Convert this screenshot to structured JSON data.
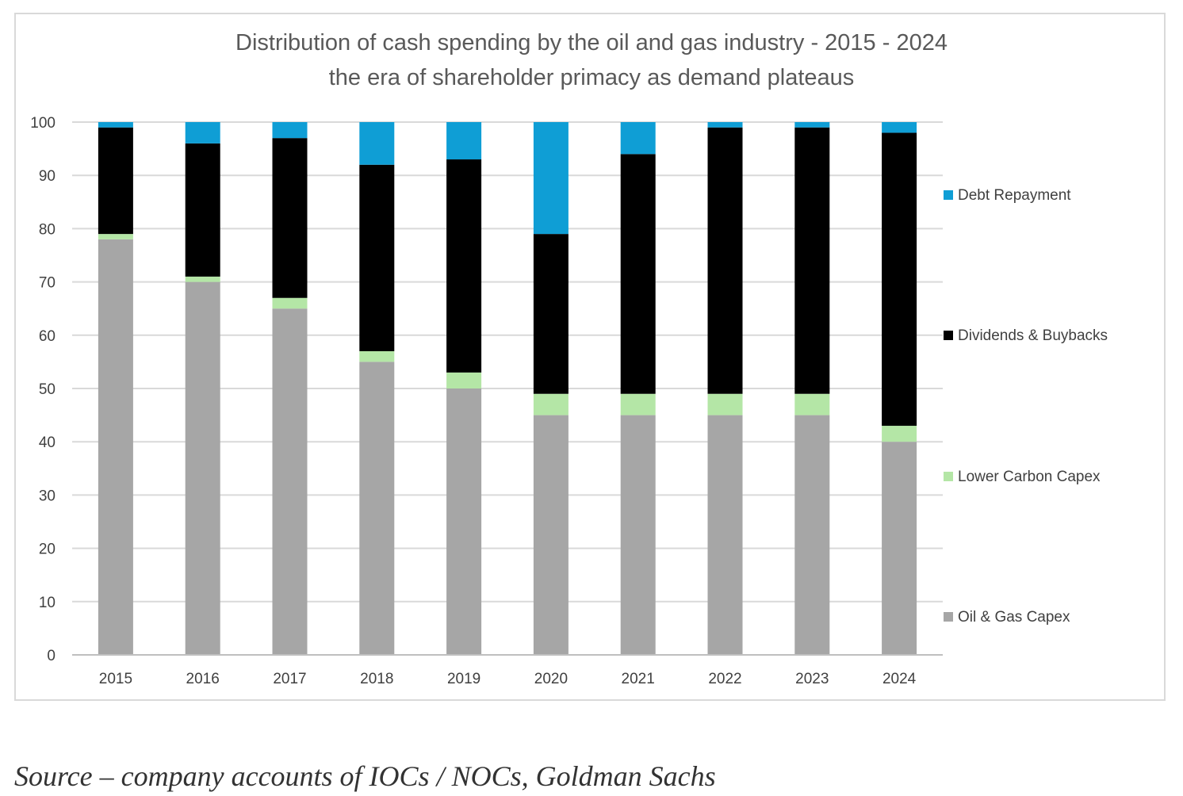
{
  "chart_data": {
    "type": "bar",
    "stacked": true,
    "title": "Distribution of cash spending by the oil and gas industry - 2015 - 2024",
    "subtitle": "the era of shareholder primacy as demand plateaus",
    "categories": [
      "2015",
      "2016",
      "2017",
      "2018",
      "2019",
      "2020",
      "2021",
      "2022",
      "2023",
      "2024"
    ],
    "series": [
      {
        "name": "Oil & Gas Capex",
        "color": "#a6a6a6",
        "values": [
          78,
          70,
          65,
          55,
          50,
          45,
          45,
          45,
          45,
          40
        ]
      },
      {
        "name": "Lower Carbon Capex",
        "color": "#b4e6a6",
        "values": [
          1,
          1,
          2,
          2,
          3,
          4,
          4,
          4,
          4,
          3
        ]
      },
      {
        "name": "Dividends & Buybacks",
        "color": "#000000",
        "values": [
          20,
          25,
          30,
          35,
          40,
          30,
          45,
          50,
          50,
          55
        ]
      },
      {
        "name": "Debt Repayment",
        "color": "#0f9ed5",
        "values": [
          1,
          4,
          3,
          8,
          7,
          21,
          6,
          1,
          1,
          2
        ]
      }
    ],
    "legend_order": [
      "Debt Repayment",
      "Dividends & Buybacks",
      "Lower Carbon Capex",
      "Oil & Gas Capex"
    ],
    "ylim": [
      0,
      100
    ],
    "yticks": [
      "0",
      "10",
      "20",
      "30",
      "40",
      "50",
      "60",
      "70",
      "80",
      "90",
      "100"
    ],
    "xlabel": "",
    "ylabel": "",
    "grid": true,
    "legend_position": "right"
  },
  "source": "Source – company accounts of IOCs / NOCs, Goldman Sachs"
}
